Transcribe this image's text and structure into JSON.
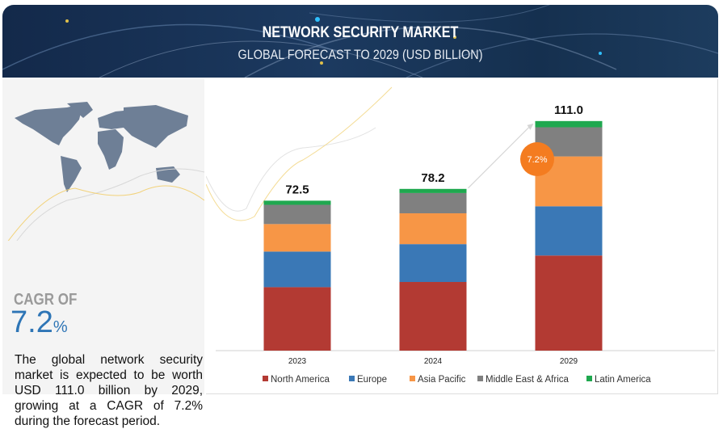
{
  "header": {
    "title": "NETWORK SECURITY MARKET",
    "subtitle": "GLOBAL FORECAST TO 2029 (USD BILLION)"
  },
  "left_panel": {
    "cagr_label": "CAGR OF",
    "cagr_value": "7.2",
    "cagr_unit": "%",
    "description": "The global network security market is expected to be worth USD  111.0 billion by 2029, growing at a CAGR of 7.2% during the forecast period."
  },
  "chart_data": {
    "type": "bar",
    "stacked": true,
    "categories": [
      "2023",
      "2024",
      "2029"
    ],
    "totals": [
      "72.5",
      "78.2",
      "111.0"
    ],
    "series": [
      {
        "name": "North America",
        "color": "#b33a33",
        "values": [
          30.7,
          33.2,
          46.0
        ]
      },
      {
        "name": "Europe",
        "color": "#3a78b6",
        "values": [
          17.2,
          18.3,
          23.8
        ]
      },
      {
        "name": "Asia Pacific",
        "color": "#f79646",
        "values": [
          13.3,
          14.9,
          24.1
        ]
      },
      {
        "name": "Middle East & Africa",
        "color": "#808080",
        "values": [
          9.3,
          9.8,
          14.1
        ]
      },
      {
        "name": "Latin America",
        "color": "#1fa84f",
        "values": [
          2.0,
          2.0,
          3.0
        ]
      }
    ],
    "annotation": {
      "label": "7.2%",
      "color": "#f47c20"
    },
    "legend": "bottom",
    "grid": false,
    "y_axis_visible": false
  }
}
